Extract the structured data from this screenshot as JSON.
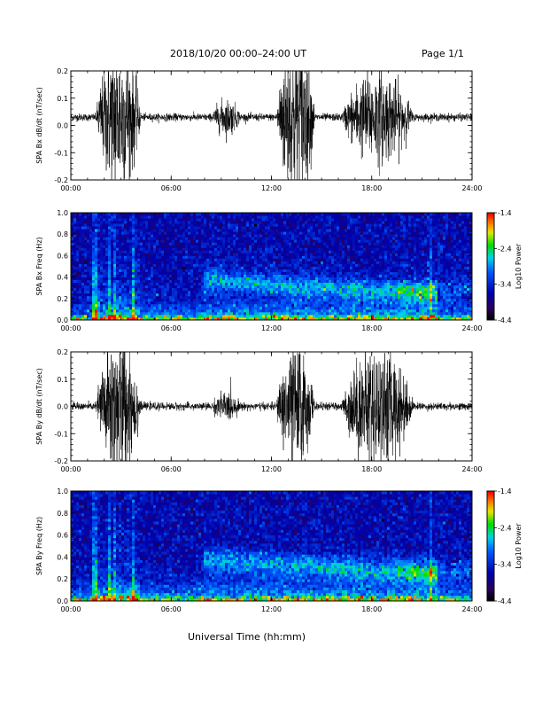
{
  "header": {
    "title": "2018/10/20   00:00–24:00 UT",
    "page": "Page 1/1"
  },
  "xlabel": "Universal Time (hh:mm)",
  "chart_data": [
    {
      "type": "line",
      "ylabel": "SPA Bx dB/dt (nT/sec)",
      "xlim": [
        0,
        24
      ],
      "ylim": [
        -0.2,
        0.2
      ],
      "x_ticks": [
        "00:00",
        "06:00",
        "12:00",
        "18:00",
        "24:00"
      ],
      "y_ticks": [
        "-0.2",
        "-0.1",
        "0.0",
        "0.1",
        "0.2"
      ],
      "baseline": 0.03,
      "activity_windows": [
        {
          "start": 1.5,
          "end": 4.2,
          "amplitude": 0.25
        },
        {
          "start": 8.4,
          "end": 10.2,
          "amplitude": 0.06
        },
        {
          "start": 12.3,
          "end": 14.6,
          "amplitude": 0.3
        },
        {
          "start": 16.2,
          "end": 20.5,
          "amplitude": 0.15
        }
      ]
    },
    {
      "type": "heatmap",
      "ylabel": "SPA Bx Freq (Hz)",
      "xlim": [
        0,
        24
      ],
      "ylim": [
        0,
        1.0
      ],
      "x_ticks": [
        "00:00",
        "06:00",
        "12:00",
        "18:00",
        "24:00"
      ],
      "y_ticks": [
        "0.0",
        "0.2",
        "0.4",
        "0.6",
        "0.8",
        "1.0"
      ],
      "colorbar": {
        "label": "Log10 Power",
        "ticks": [
          "-1.4",
          "-2.4",
          "-3.4",
          "-4.4"
        ],
        "range": [
          -4.4,
          -1.4
        ]
      },
      "vertical_streaks": [
        1.4,
        2.3,
        2.6,
        3.7,
        21.5
      ]
    },
    {
      "type": "line",
      "ylabel": "SPA By dB/dt (nT/sec)",
      "xlim": [
        0,
        24
      ],
      "ylim": [
        -0.2,
        0.2
      ],
      "x_ticks": [
        "00:00",
        "06:00",
        "12:00",
        "18:00",
        "24:00"
      ],
      "y_ticks": [
        "-0.2",
        "-0.1",
        "0.0",
        "0.1",
        "0.2"
      ],
      "baseline": 0.0,
      "activity_windows": [
        {
          "start": 1.5,
          "end": 4.2,
          "amplitude": 0.25
        },
        {
          "start": 8.4,
          "end": 10.2,
          "amplitude": 0.05
        },
        {
          "start": 12.3,
          "end": 14.6,
          "amplitude": 0.2
        },
        {
          "start": 16.2,
          "end": 20.5,
          "amplitude": 0.2
        }
      ]
    },
    {
      "type": "heatmap",
      "ylabel": "SPA By Freq (Hz)",
      "xlim": [
        0,
        24
      ],
      "ylim": [
        0,
        1.0
      ],
      "x_ticks": [
        "00:00",
        "06:00",
        "12:00",
        "18:00",
        "24:00"
      ],
      "y_ticks": [
        "0.0",
        "0.2",
        "0.4",
        "0.6",
        "0.8",
        "1.0"
      ],
      "colorbar": {
        "label": "Log10 Power",
        "ticks": [
          "-1.4",
          "-2.4",
          "-3.4",
          "-4.4"
        ],
        "range": [
          -4.4,
          -1.4
        ]
      },
      "vertical_streaks": [
        1.4,
        2.3,
        2.6,
        3.7,
        21.5
      ]
    }
  ]
}
